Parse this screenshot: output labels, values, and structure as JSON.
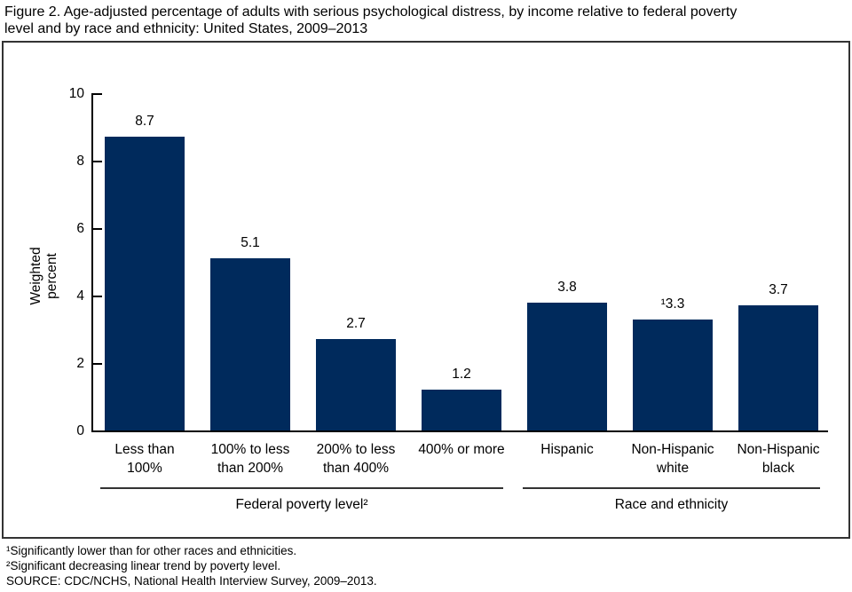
{
  "title": "Figure 2. Age-adjusted percentage of adults with serious psychological distress, by income relative to federal poverty\nlevel and by race and ethnicity: United States, 2009–2013",
  "chart_data": {
    "type": "bar",
    "title": "Figure 2. Age-adjusted percentage of adults with serious psychological distress, by income relative to federal poverty level and by race and ethnicity: United States, 2009–2013",
    "xlabel": "",
    "ylabel": "Weighted percent",
    "ylim": [
      0,
      10
    ],
    "yticks": [
      0,
      2,
      4,
      6,
      8,
      10
    ],
    "grid": false,
    "legend": "none",
    "bar_color": "#002a5c",
    "categories": [
      "Less than\n100%",
      "100% to less\nthan 200%",
      "200% to less\nthan 400%",
      "400% or more",
      "Hispanic",
      "Non-Hispanic\nwhite",
      "Non-Hispanic\nblack"
    ],
    "bars": [
      {
        "label": "Less than\n100%",
        "value": 8.7,
        "value_label": "8.7"
      },
      {
        "label": "100% to less\nthan 200%",
        "value": 5.1,
        "value_label": "5.1"
      },
      {
        "label": "200% to less\nthan 400%",
        "value": 2.7,
        "value_label": "2.7"
      },
      {
        "label": "400% or more",
        "value": 1.2,
        "value_label": "1.2"
      },
      {
        "label": "Hispanic",
        "value": 3.8,
        "value_label": "3.8"
      },
      {
        "label": "Non-Hispanic\nwhite",
        "value": 3.3,
        "value_label": "¹3.3"
      },
      {
        "label": "Non-Hispanic\nblack",
        "value": 3.7,
        "value_label": "3.7"
      }
    ],
    "groups": [
      {
        "label": "Federal poverty level²",
        "from": 0,
        "to": 3
      },
      {
        "label": "Race and ethnicity",
        "from": 4,
        "to": 6
      }
    ]
  },
  "footnotes": [
    "¹Significantly lower than for other races and ethnicities.",
    "²Significant decreasing linear trend by poverty level.",
    "SOURCE: CDC/NCHS, National Health Interview Survey, 2009–2013."
  ]
}
